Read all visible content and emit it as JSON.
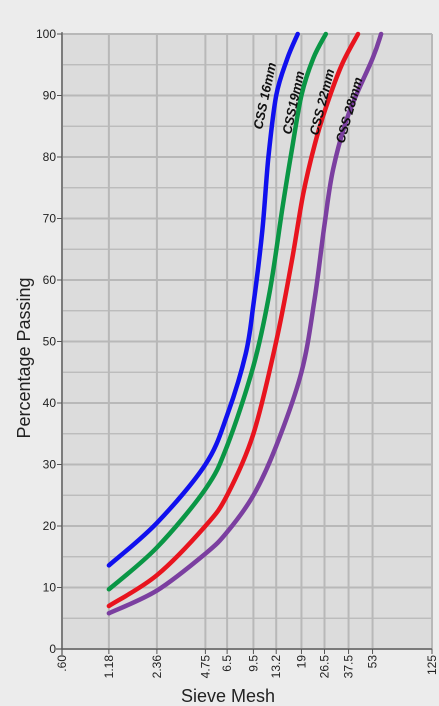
{
  "chart_data": {
    "type": "line",
    "title": "",
    "xlabel": "Sieve Mesh",
    "ylabel": "Percentage Passing",
    "x_scale": "log",
    "xlim": [
      0.6,
      125
    ],
    "ylim": [
      0,
      100
    ],
    "grid": true,
    "legend": "none (labels drawn on curves)",
    "x_ticks": [
      {
        "value": 0.6,
        "label": ".60"
      },
      {
        "value": 1.18,
        "label": "1.18"
      },
      {
        "value": 2.36,
        "label": "2.36"
      },
      {
        "value": 4.75,
        "label": "4.75"
      },
      {
        "value": 6.5,
        "label": "6.5"
      },
      {
        "value": 9.5,
        "label": "9.5"
      },
      {
        "value": 13.2,
        "label": "13.2"
      },
      {
        "value": 19,
        "label": "19"
      },
      {
        "value": 26.5,
        "label": "26.5"
      },
      {
        "value": 37.5,
        "label": "37.5"
      },
      {
        "value": 53,
        "label": "53"
      },
      {
        "value": 125,
        "label": "125"
      }
    ],
    "y_ticks": [
      0,
      10,
      20,
      30,
      40,
      50,
      60,
      70,
      80,
      90,
      100
    ],
    "series": [
      {
        "name": "CSS 16mm",
        "color": "#1010ee",
        "points": [
          [
            1.18,
            13.6
          ],
          [
            2.36,
            20.5
          ],
          [
            4.75,
            30
          ],
          [
            6.5,
            38
          ],
          [
            8.5,
            48
          ],
          [
            9.5,
            56
          ],
          [
            10.8,
            68
          ],
          [
            11.8,
            80
          ],
          [
            13.2,
            90
          ],
          [
            15.5,
            96
          ],
          [
            18,
            100
          ]
        ]
      },
      {
        "name": "CSS19mm",
        "color": "#0a9645",
        "points": [
          [
            1.18,
            9.7
          ],
          [
            2.36,
            16.5
          ],
          [
            4.75,
            26
          ],
          [
            6.5,
            33
          ],
          [
            9.5,
            46
          ],
          [
            12,
            58
          ],
          [
            14.5,
            72
          ],
          [
            16.5,
            81
          ],
          [
            19,
            90
          ],
          [
            22.5,
            96
          ],
          [
            27,
            100
          ]
        ]
      },
      {
        "name": "CSS 22mm",
        "color": "#e8141e",
        "points": [
          [
            1.18,
            7
          ],
          [
            2.36,
            12
          ],
          [
            4.75,
            20
          ],
          [
            6.5,
            25
          ],
          [
            9.5,
            35
          ],
          [
            13.2,
            50
          ],
          [
            16.5,
            63
          ],
          [
            19.5,
            74
          ],
          [
            23,
            82
          ],
          [
            27,
            88
          ],
          [
            34,
            95
          ],
          [
            43,
            100
          ]
        ]
      },
      {
        "name": "CSS 28mm",
        "color": "#7b3fa0",
        "points": [
          [
            1.18,
            5.8
          ],
          [
            2.36,
            9.5
          ],
          [
            4.75,
            15.5
          ],
          [
            6.5,
            19
          ],
          [
            9.5,
            25
          ],
          [
            13.2,
            33
          ],
          [
            19,
            45
          ],
          [
            23,
            57
          ],
          [
            26.5,
            69
          ],
          [
            30,
            78
          ],
          [
            37.5,
            87
          ],
          [
            53,
            96
          ],
          [
            60,
            100
          ]
        ]
      }
    ]
  }
}
